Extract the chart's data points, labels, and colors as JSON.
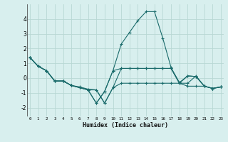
{
  "xlabel": "Humidex (Indice chaleur)",
  "background_color": "#d8efee",
  "grid_color": "#b8d8d4",
  "line_color": "#1a6b6b",
  "x_values": [
    0,
    1,
    2,
    3,
    4,
    5,
    6,
    7,
    8,
    9,
    10,
    11,
    12,
    13,
    14,
    15,
    16,
    17,
    18,
    19,
    20,
    21,
    22,
    23
  ],
  "series": [
    [
      1.4,
      0.8,
      0.5,
      -0.2,
      -0.2,
      -0.5,
      -0.65,
      -0.8,
      -1.7,
      -0.9,
      0.5,
      2.3,
      3.1,
      3.9,
      4.5,
      4.5,
      2.7,
      0.7,
      -0.3,
      0.15,
      0.1,
      -0.55,
      -0.7,
      -0.6
    ],
    [
      1.4,
      0.8,
      0.5,
      -0.2,
      -0.2,
      -0.5,
      -0.6,
      -0.75,
      -0.8,
      -1.7,
      -0.65,
      0.65,
      0.65,
      0.65,
      0.65,
      0.65,
      0.65,
      0.65,
      -0.35,
      -0.35,
      0.15,
      -0.55,
      -0.7,
      -0.6
    ],
    [
      1.4,
      0.8,
      0.5,
      -0.2,
      -0.2,
      -0.5,
      -0.65,
      -0.8,
      -0.8,
      -1.7,
      -0.65,
      -0.35,
      -0.35,
      -0.35,
      -0.35,
      -0.35,
      -0.35,
      -0.35,
      -0.35,
      -0.55,
      -0.55,
      -0.55,
      -0.7,
      -0.6
    ],
    [
      1.4,
      0.8,
      0.5,
      -0.2,
      -0.2,
      -0.5,
      -0.65,
      -0.8,
      -1.7,
      -0.9,
      0.5,
      0.65,
      0.65,
      0.65,
      0.65,
      0.65,
      0.65,
      0.65,
      -0.35,
      0.15,
      0.1,
      -0.55,
      -0.7,
      -0.6
    ]
  ],
  "ylim": [
    -2.6,
    5.0
  ],
  "yticks": [
    -2,
    -1,
    0,
    1,
    2,
    3,
    4
  ],
  "xlim": [
    -0.3,
    23.3
  ],
  "xticks": [
    0,
    1,
    2,
    3,
    4,
    5,
    6,
    7,
    8,
    9,
    10,
    11,
    12,
    13,
    14,
    15,
    16,
    17,
    18,
    19,
    20,
    21,
    22,
    23
  ]
}
